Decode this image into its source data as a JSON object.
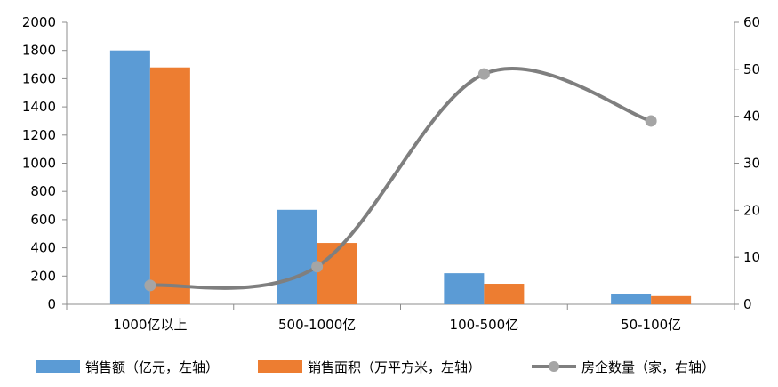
{
  "chart_data": {
    "type": "bar",
    "categories": [
      "1000亿以上",
      "500-1000亿",
      "100-500亿",
      "50-100亿"
    ],
    "series": [
      {
        "name": "销售额（亿元，左轴）",
        "kind": "bar",
        "axis": "left",
        "color": "#5B9BD5",
        "values": [
          1800,
          670,
          220,
          70
        ]
      },
      {
        "name": "销售面积（万平方米，左轴）",
        "kind": "bar",
        "axis": "left",
        "color": "#ED7D31",
        "values": [
          1680,
          435,
          145,
          58
        ]
      },
      {
        "name": "房企数量（家，右轴）",
        "kind": "line",
        "axis": "right",
        "color": "#7F7F7F",
        "marker_color": "#A5A5A5",
        "smooth": true,
        "values": [
          4,
          8,
          49,
          39
        ]
      }
    ],
    "left_axis": {
      "min": 0,
      "max": 2000,
      "step": 200
    },
    "right_axis": {
      "min": 0,
      "max": 60,
      "step": 10
    },
    "grid": false,
    "legend_position": "bottom"
  }
}
